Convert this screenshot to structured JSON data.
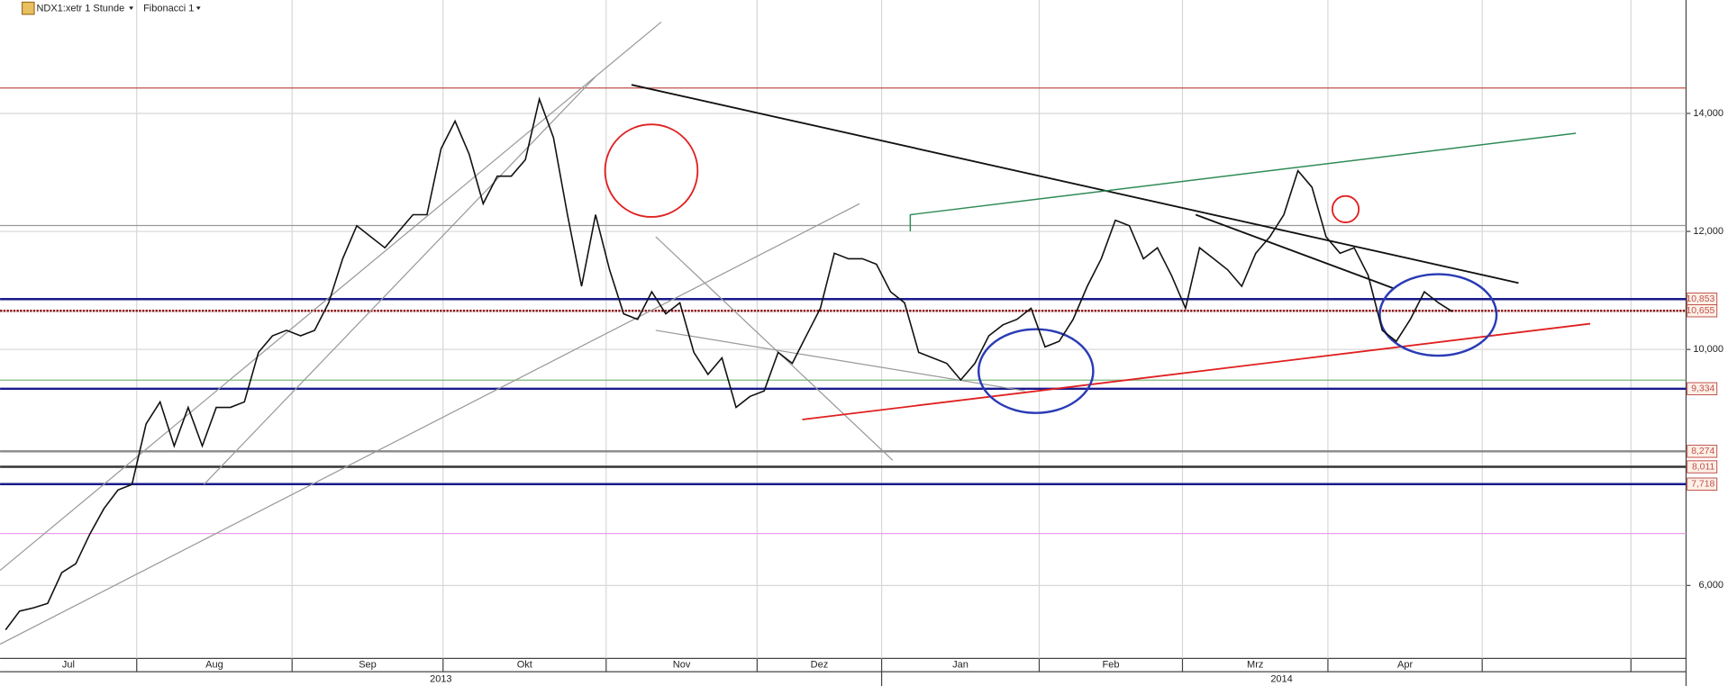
{
  "header": {
    "symbol": "NDX1:xetr 1 Stunde",
    "study": "Fibonacci 1"
  },
  "chart_data": {
    "type": "line",
    "color": "#111111",
    "values": [
      5248,
      5566,
      5622,
      5696,
      6219,
      6368,
      6872,
      7301,
      7618,
      7712,
      8738,
      9111,
      8365,
      9018,
      8365,
      9018,
      9018,
      9111,
      9951,
      10231,
      10324,
      10231,
      10324,
      10790,
      11537,
      12097,
      11910,
      11723,
      12003,
      12283,
      12283,
      13403,
      13869,
      13310,
      12470,
      12936,
      12936,
      13216,
      14243,
      13589,
      12283,
      11070,
      12283,
      11350,
      10604,
      10511,
      10977,
      10604,
      10790,
      9951,
      9578,
      9857,
      9018,
      9204,
      9298,
      9951,
      9764,
      10231,
      10697,
      11630,
      11537,
      11537,
      11444,
      10977,
      10790,
      9951,
      9857,
      9764,
      9484,
      9764,
      10231,
      10417,
      10511,
      10697,
      10044,
      10137,
      10511,
      11070,
      11537,
      12190,
      12097,
      11537,
      11723,
      11257,
      10697,
      11723,
      11537,
      11350,
      11070,
      11630,
      11910,
      12283,
      13030,
      12750,
      11910,
      11630,
      11723,
      11257,
      10324,
      10137,
      10511,
      10977,
      10790,
      10641
    ],
    "ylim": [
      4763,
      15922
    ],
    "yticks": [
      {
        "value": 6000,
        "label": "6,000"
      },
      {
        "value": 10000,
        "label": "10,000"
      },
      {
        "value": 12000,
        "label": "12,000"
      },
      {
        "value": 14000,
        "label": "14,000"
      }
    ],
    "levels": [
      {
        "value": 14430,
        "color": "#c0504d"
      },
      {
        "value": 12100,
        "color": "#999999"
      },
      {
        "value": 10853,
        "label": "10,853",
        "color": "#1a1a8c"
      },
      {
        "value": 10655,
        "label": "10,655",
        "color": "#8b1a1a"
      },
      {
        "value": 9480,
        "color": "#7cb87c"
      },
      {
        "value": 9334,
        "label": "9,334",
        "color": "#1a1a8c"
      },
      {
        "value": 8274,
        "label": "8,274",
        "color": "#888888"
      },
      {
        "value": 8011,
        "label": "8,011",
        "color": "#333333"
      },
      {
        "value": 7718,
        "label": "7,718",
        "color": "#1a1a8c"
      },
      {
        "value": 6880,
        "color": "#e9a0e9"
      }
    ],
    "months": [
      "Jul",
      "Aug",
      "Sep",
      "Okt",
      "Nov",
      "Dez",
      "Jan",
      "Feb",
      "Mrz",
      "Apr"
    ],
    "years": [
      "2013",
      "2014"
    ],
    "grid": true
  }
}
